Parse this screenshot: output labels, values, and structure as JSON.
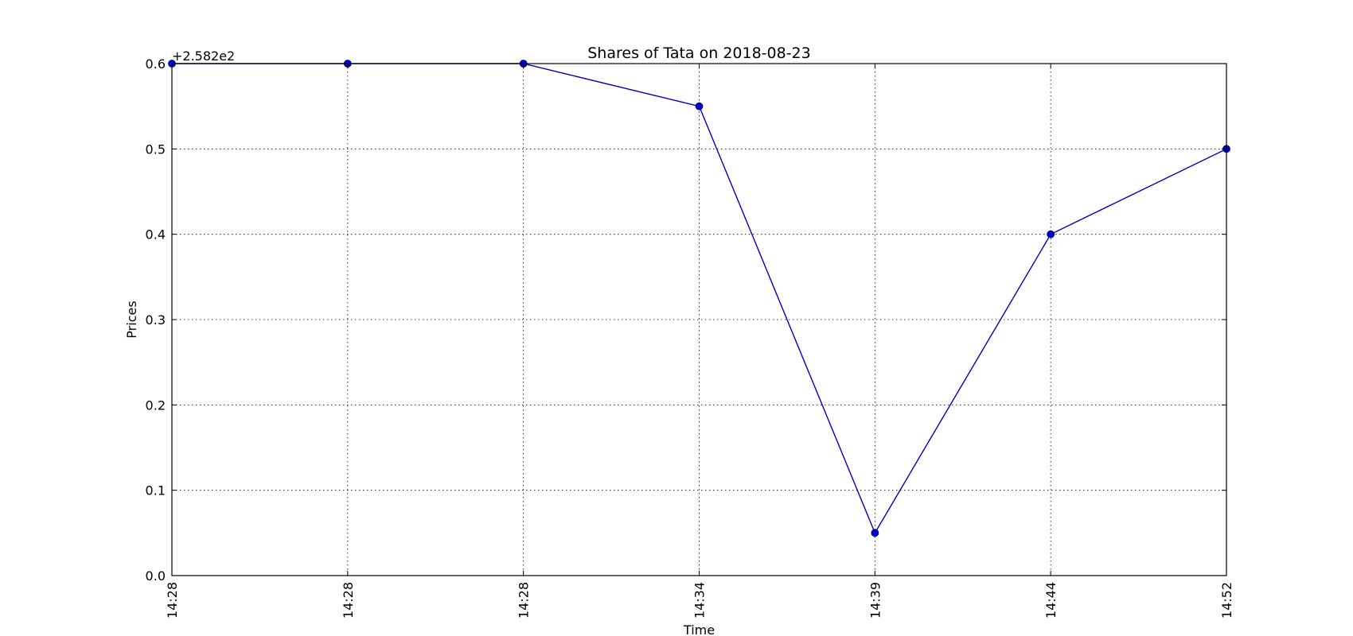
{
  "chart_data": {
    "type": "line",
    "title": "Shares of Tata on 2018-08-23",
    "xlabel": "Time",
    "ylabel": "Prices",
    "y_offset_label": "+2.582e2",
    "categories": [
      "14:28",
      "14:28",
      "14:28",
      "14:34",
      "14:39",
      "14:44",
      "14:52"
    ],
    "series": [
      {
        "values": [
          0.6,
          0.6,
          0.6,
          0.55,
          0.05,
          0.4,
          0.5
        ],
        "color": "#0000cc",
        "marker": "circle"
      }
    ],
    "ylim": [
      0.0,
      0.6
    ],
    "yticks": [
      "0.0",
      "0.1",
      "0.2",
      "0.3",
      "0.4",
      "0.5",
      "0.6"
    ],
    "grid": true,
    "grid_style": "dotted"
  }
}
